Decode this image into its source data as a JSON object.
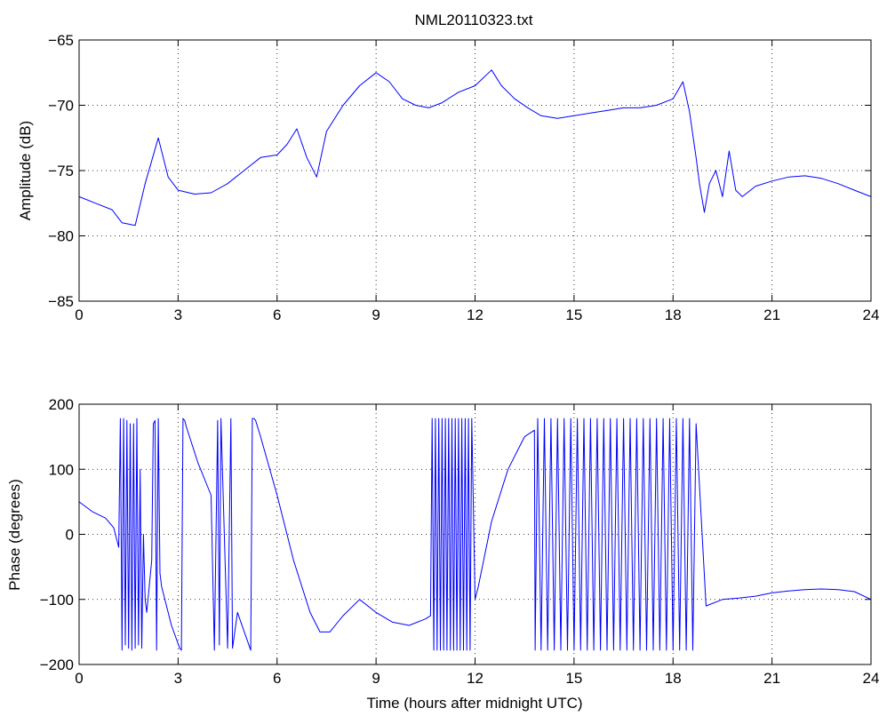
{
  "chart_data": [
    {
      "type": "line",
      "title": "NML20110323.txt",
      "xlabel": "",
      "ylabel": "Amplitude (dB)",
      "xlim": [
        0,
        24
      ],
      "ylim": [
        -85,
        -65
      ],
      "x_ticks": [
        0,
        3,
        6,
        9,
        12,
        15,
        18,
        21,
        24
      ],
      "y_ticks": [
        -85,
        -80,
        -75,
        -70,
        -65
      ],
      "grid": true,
      "line_color": "#0000ff",
      "x": [
        0,
        0.5,
        1.0,
        1.3,
        1.7,
        2.0,
        2.4,
        2.7,
        3.0,
        3.5,
        4.0,
        4.5,
        5.0,
        5.5,
        6.0,
        6.3,
        6.6,
        6.9,
        7.2,
        7.5,
        8.0,
        8.5,
        9.0,
        9.4,
        9.8,
        10.2,
        10.6,
        11.0,
        11.5,
        12.0,
        12.5,
        12.8,
        13.2,
        13.6,
        14.0,
        14.5,
        15.0,
        15.5,
        16.0,
        16.5,
        17.0,
        17.5,
        18.0,
        18.3,
        18.5,
        18.7,
        18.8,
        18.95,
        19.1,
        19.3,
        19.5,
        19.7,
        19.9,
        20.1,
        20.5,
        21.0,
        21.5,
        22.0,
        22.5,
        23.0,
        23.5,
        24.0
      ],
      "y": [
        -77.0,
        -77.5,
        -78.0,
        -79.0,
        -79.2,
        -76.0,
        -72.5,
        -75.5,
        -76.5,
        -76.8,
        -76.7,
        -76.0,
        -75.0,
        -74.0,
        -73.8,
        -73.0,
        -71.8,
        -74.0,
        -75.5,
        -72.0,
        -70.0,
        -68.5,
        -67.5,
        -68.2,
        -69.5,
        -70.0,
        -70.2,
        -69.8,
        -69.0,
        -68.5,
        -67.3,
        -68.5,
        -69.5,
        -70.2,
        -70.8,
        -71.0,
        -70.8,
        -70.6,
        -70.4,
        -70.2,
        -70.2,
        -70.0,
        -69.5,
        -68.2,
        -70.5,
        -74.0,
        -76.0,
        -78.2,
        -76.0,
        -75.0,
        -77.0,
        -73.5,
        -76.5,
        -77.0,
        -76.2,
        -75.8,
        -75.5,
        -75.4,
        -75.6,
        -76.0,
        -76.5,
        -77.0
      ]
    },
    {
      "type": "line",
      "title": "",
      "xlabel": "Time (hours after midnight UTC)",
      "ylabel": "Phase (degrees)",
      "xlim": [
        0,
        24
      ],
      "ylim": [
        -200,
        200
      ],
      "x_ticks": [
        0,
        3,
        6,
        9,
        12,
        15,
        18,
        21,
        24
      ],
      "y_ticks": [
        -200,
        -100,
        0,
        100,
        200
      ],
      "grid": true,
      "line_color": "#0000ff",
      "x": [
        0.0,
        0.4,
        0.8,
        1.05,
        1.2,
        1.25,
        1.3,
        1.35,
        1.4,
        1.45,
        1.5,
        1.55,
        1.6,
        1.65,
        1.7,
        1.75,
        1.8,
        1.85,
        1.9,
        1.95,
        2.0,
        2.05,
        2.2,
        2.25,
        2.3,
        2.35,
        2.4,
        2.45,
        2.5,
        2.8,
        3.05,
        3.1,
        3.15,
        3.2,
        3.25,
        3.6,
        4.0,
        4.1,
        4.2,
        4.25,
        4.3,
        4.5,
        4.6,
        4.65,
        4.8,
        5.2,
        5.25,
        5.3,
        5.35,
        5.5,
        6.0,
        6.5,
        7.0,
        7.3,
        7.6,
        8.0,
        8.5,
        9.0,
        9.5,
        10.0,
        10.5,
        10.65,
        10.7,
        10.75,
        10.8,
        10.85,
        10.9,
        10.95,
        11.0,
        11.05,
        11.1,
        11.15,
        11.2,
        11.25,
        11.3,
        11.35,
        11.4,
        11.45,
        11.5,
        11.55,
        11.6,
        11.65,
        11.7,
        11.75,
        11.8,
        11.85,
        11.9,
        12.0,
        12.1,
        12.5,
        13.0,
        13.5,
        13.8,
        13.82,
        13.9,
        14.0,
        14.1,
        14.2,
        14.3,
        14.4,
        14.5,
        14.6,
        14.7,
        14.8,
        14.9,
        15.0,
        15.1,
        15.2,
        15.3,
        15.4,
        15.5,
        15.6,
        15.7,
        15.8,
        15.9,
        16.0,
        16.1,
        16.2,
        16.3,
        16.4,
        16.5,
        16.6,
        16.7,
        16.8,
        16.9,
        17.0,
        17.1,
        17.2,
        17.3,
        17.4,
        17.5,
        17.6,
        17.7,
        17.8,
        17.9,
        18.0,
        18.1,
        18.2,
        18.3,
        18.4,
        18.5,
        18.6,
        18.7,
        19.0,
        19.5,
        20.0,
        20.5,
        21.0,
        21.5,
        22.0,
        22.5,
        23.0,
        23.5,
        24.0
      ],
      "y": [
        50,
        35,
        25,
        10,
        -20,
        178,
        -178,
        178,
        -170,
        175,
        -175,
        170,
        -178,
        170,
        -175,
        178,
        -170,
        100,
        -175,
        0,
        -100,
        -120,
        -40,
        170,
        175,
        -178,
        178,
        -60,
        -80,
        -140,
        -175,
        -178,
        178,
        175,
        165,
        110,
        60,
        -178,
        175,
        -170,
        178,
        -175,
        178,
        -175,
        -120,
        -178,
        178,
        178,
        175,
        150,
        60,
        -40,
        -120,
        -150,
        -150,
        -125,
        -100,
        -120,
        -135,
        -140,
        -130,
        -125,
        178,
        -178,
        178,
        -178,
        178,
        -178,
        178,
        -178,
        178,
        -178,
        178,
        -178,
        178,
        -178,
        178,
        -178,
        178,
        -178,
        178,
        -178,
        178,
        -178,
        178,
        -178,
        178,
        -100,
        -80,
        20,
        100,
        150,
        160,
        -178,
        178,
        -178,
        178,
        -178,
        178,
        -178,
        178,
        -178,
        178,
        -178,
        178,
        -178,
        178,
        -178,
        178,
        -178,
        178,
        -178,
        178,
        -178,
        178,
        -178,
        178,
        -178,
        178,
        -178,
        178,
        -178,
        178,
        -178,
        178,
        -178,
        178,
        -178,
        178,
        -178,
        178,
        -178,
        178,
        -178,
        178,
        -178,
        178,
        -178,
        178,
        -178,
        178,
        -178,
        170,
        -110,
        -100,
        -98,
        -95,
        -90,
        -87,
        -85,
        -84,
        -85,
        -88,
        -100
      ]
    }
  ]
}
